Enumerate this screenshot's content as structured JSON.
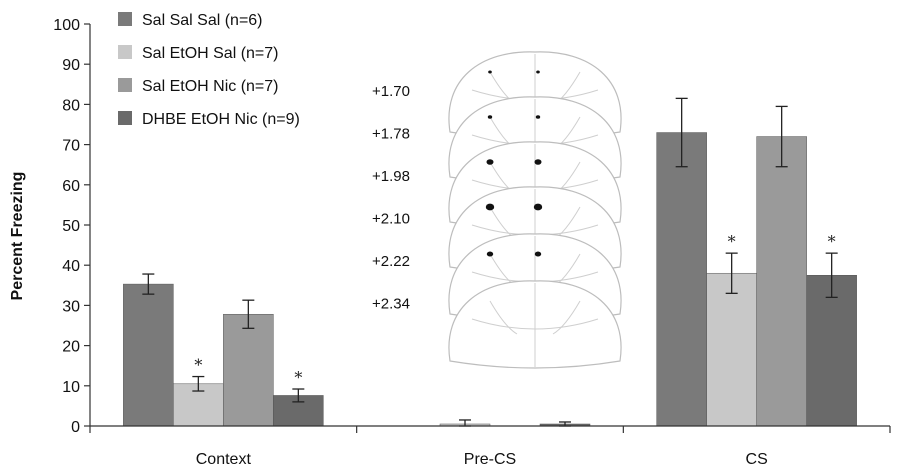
{
  "chart_data": {
    "type": "bar",
    "ylabel": "Percent Freezing",
    "xlabel": "",
    "ylim": [
      0,
      100
    ],
    "yticks": [
      0,
      10,
      20,
      30,
      40,
      50,
      60,
      70,
      80,
      90,
      100
    ],
    "categories": [
      "Context",
      "Pre-CS",
      "CS"
    ],
    "series": [
      {
        "name": "Sal Sal Sal (n=6)",
        "color": "#7a7a7a",
        "values": [
          35.3,
          0.0,
          73.0
        ],
        "errors": [
          2.5,
          0.0,
          8.5
        ],
        "significant": [
          false,
          false,
          false
        ]
      },
      {
        "name": "Sal EtOH Sal (n=7)",
        "color": "#c8c8c8",
        "values": [
          10.5,
          0.5,
          38.0
        ],
        "errors": [
          1.8,
          1.0,
          5.0
        ],
        "significant": [
          true,
          false,
          true
        ]
      },
      {
        "name": "Sal EtOH Nic (n=7)",
        "color": "#9a9a9a",
        "values": [
          27.8,
          0.0,
          72.0
        ],
        "errors": [
          3.5,
          0.0,
          7.5
        ],
        "significant": [
          false,
          false,
          false
        ]
      },
      {
        "name": "DHBE EtOH Nic (n=9)",
        "color": "#6a6a6a",
        "values": [
          7.6,
          0.5,
          37.5
        ],
        "errors": [
          1.6,
          0.5,
          5.5
        ],
        "significant": [
          true,
          false,
          true
        ]
      }
    ],
    "significance_marker": "*",
    "legend_position": "top-left",
    "grid": false,
    "inset": {
      "type": "brain-section-atlas",
      "coordinates": [
        "+1.70",
        "+1.78",
        "+1.98",
        "+2.10",
        "+2.22",
        "+2.34"
      ]
    }
  }
}
